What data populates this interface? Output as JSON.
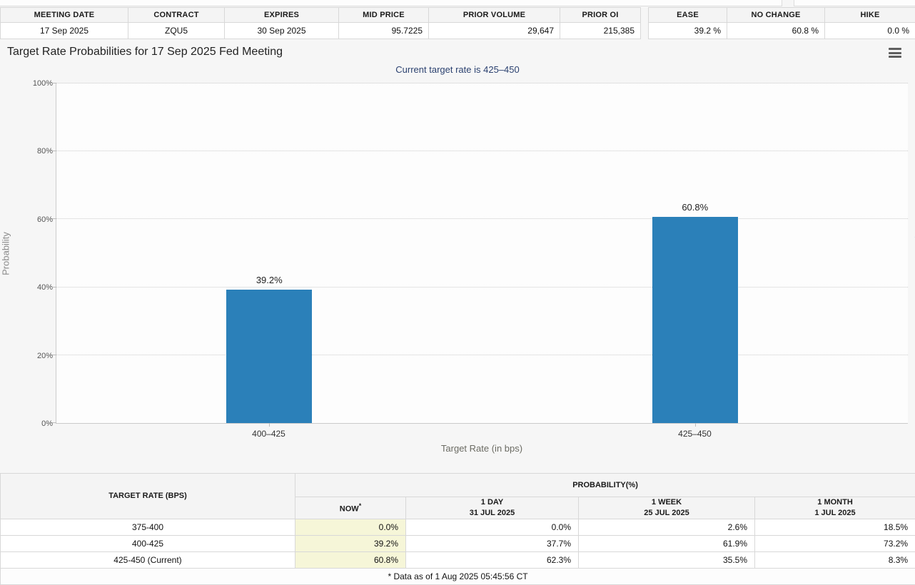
{
  "colors": {
    "bar": "#2b80b9",
    "now_highlight": "#f6f6d8",
    "subtitle_text": "#2c4270"
  },
  "top_left_table": {
    "headers": [
      "MEETING DATE",
      "CONTRACT",
      "EXPIRES",
      "MID PRICE",
      "PRIOR VOLUME",
      "PRIOR OI"
    ],
    "values": [
      "17 Sep 2025",
      "ZQU5",
      "30 Sep 2025",
      "95.7225",
      "29,647",
      "215,385"
    ]
  },
  "top_right_table": {
    "headers": [
      "EASE",
      "NO CHANGE",
      "HIKE"
    ],
    "values": [
      "39.2 %",
      "60.8 %",
      "0.0 %"
    ]
  },
  "chart": {
    "title": "Target Rate Probabilities for 17 Sep 2025 Fed Meeting",
    "subtitle": "Current target rate is 425–450",
    "watermark_letter": "Q"
  },
  "chart_data": {
    "type": "bar",
    "title": "Target Rate Probabilities for 17 Sep 2025 Fed Meeting",
    "subtitle": "Current target rate is 425–450",
    "categories": [
      "400–425",
      "425–450"
    ],
    "values": [
      39.2,
      60.8
    ],
    "bar_labels": [
      "39.2%",
      "60.8%"
    ],
    "xlabel": "Target Rate (in bps)",
    "ylabel": "Probability",
    "ylim": [
      0,
      100
    ],
    "yticks": [
      "0%",
      "20%",
      "40%",
      "60%",
      "80%",
      "100%"
    ],
    "grid": "horizontal-dotted",
    "legend": "none",
    "bar_color": "#2b80b9"
  },
  "bottom_table": {
    "col1_header": "TARGET RATE (BPS)",
    "group_header": "PROBABILITY(%)",
    "sub_headers": [
      {
        "line1": "NOW",
        "sup": "*",
        "line2": ""
      },
      {
        "line1": "1 DAY",
        "line2": "31 JUL 2025"
      },
      {
        "line1": "1 WEEK",
        "line2": "25 JUL 2025"
      },
      {
        "line1": "1 MONTH",
        "line2": "1 JUL 2025"
      }
    ],
    "rows": [
      {
        "rate": "375-400",
        "values": [
          "0.0%",
          "0.0%",
          "2.6%",
          "18.5%"
        ]
      },
      {
        "rate": "400-425",
        "values": [
          "39.2%",
          "37.7%",
          "61.9%",
          "73.2%"
        ]
      },
      {
        "rate": "425-450 (Current)",
        "values": [
          "60.8%",
          "62.3%",
          "35.5%",
          "8.3%"
        ]
      }
    ],
    "footnote": "* Data as of 1 Aug 2025 05:45:56 CT"
  }
}
